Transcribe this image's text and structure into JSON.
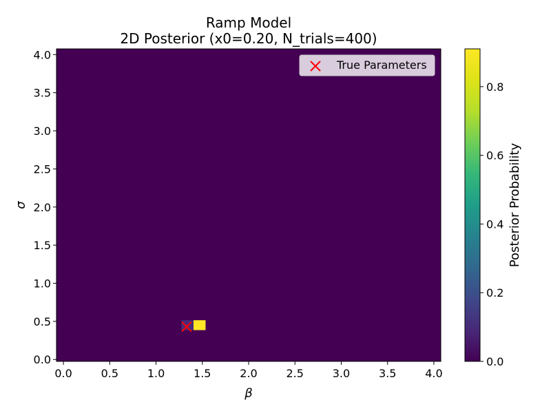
{
  "chart_data": {
    "type": "heatmap",
    "title_line1": "Ramp Model",
    "title_line2": "2D Posterior (x0=0.20, N_trials=400)",
    "xlabel": "β",
    "ylabel": "σ",
    "xlim": [
      -0.075,
      4.075
    ],
    "ylim": [
      -0.025,
      4.075
    ],
    "xticks": [
      "0.0",
      "0.5",
      "1.0",
      "1.5",
      "2.0",
      "2.5",
      "3.0",
      "3.5",
      "4.0"
    ],
    "yticks": [
      "0.0",
      "0.5",
      "1.0",
      "1.5",
      "2.0",
      "2.5",
      "3.0",
      "3.5",
      "4.0"
    ],
    "background_value": 0.0,
    "cells": [
      {
        "beta": 1.34,
        "sigma": 0.45,
        "value": 0.1
      },
      {
        "beta": 1.47,
        "sigma": 0.45,
        "value": 0.91
      }
    ],
    "cell_width": 0.13,
    "cell_height": 0.13,
    "true_parameters": {
      "beta": 1.33,
      "sigma": 0.43,
      "color": "#ff0000",
      "marker": "x"
    },
    "legend": {
      "label": "True Parameters",
      "position": "upper right"
    },
    "colorbar": {
      "label": "Posterior Probability",
      "range": [
        0.0,
        0.91
      ],
      "ticks": [
        "0.0",
        "0.2",
        "0.4",
        "0.6",
        "0.8"
      ],
      "colormap": "viridis"
    }
  }
}
